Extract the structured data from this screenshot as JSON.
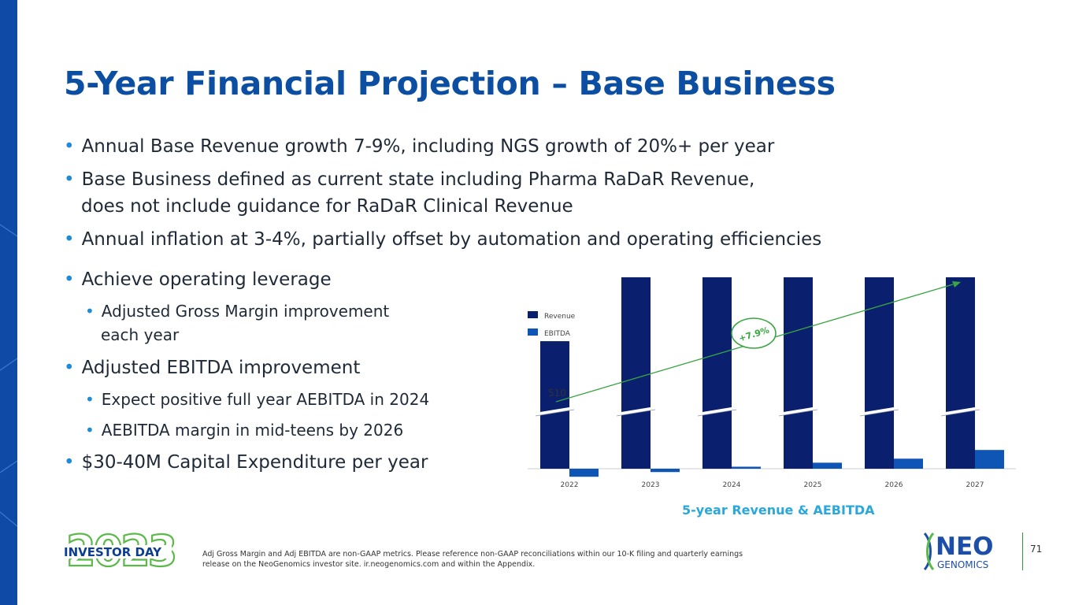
{
  "title": "5-Year Financial Projection – Base Business",
  "bullets": [
    "Annual Base Revenue growth 7-9%, including NGS growth of 20%+ per year",
    "Base Business defined as current state including Pharma RaDaR Revenue,",
    "does not include guidance for RaDaR Clinical Revenue",
    "Annual inflation at 3-4%, partially offset by automation and operating efficiencies",
    "Achieve operating leverage",
    "Adjusted EBITDA improvement",
    "$30-40M Capital Expenditure per year"
  ],
  "sub_bullets": [
    "Adjusted Gross Margin improvement",
    "each year",
    "Expect positive full year AEBITDA in 2024",
    "AEBITDA margin in mid-teens by 2026"
  ],
  "bullet_marker": "•",
  "chart_data": {
    "type": "bar",
    "categories": [
      "2022",
      "2023",
      "2024",
      "2025",
      "2026",
      "2027"
    ],
    "series": [
      {
        "name": "Revenue",
        "values": [
          510,
          550,
          594,
          645,
          700,
          753
        ],
        "color": "#0a1f6e"
      },
      {
        "name": "EBITDA",
        "values": [
          -12,
          -5,
          3,
          9,
          15,
          28
        ],
        "color": "#0f55b6"
      }
    ],
    "data_labels": {
      "first_revenue": "510"
    },
    "growth_annotation": "+7.9%",
    "axis_break": true,
    "legend_position": "top-left",
    "grid": false,
    "arrow_color": "#3aa542"
  },
  "chart_caption": "5-year Revenue & AEBITDA",
  "logo": {
    "year": "2023",
    "text": "INVESTOR DAY"
  },
  "footnote": "Adj Gross Margin and Adj EBITDA are non-GAAP metrics. Please reference non-GAAP reconciliations within our 10-K filing and quarterly earnings release on the NeoGenomics investor site. ir.neogenomics.com and within the Appendix.",
  "brand": {
    "line1": "NEO",
    "line2": "GENOMICS"
  },
  "page_number": "71",
  "colors": {
    "title": "#0b4ea2",
    "caption": "#2aa7dc",
    "accent_green": "#5bb94a",
    "band": "#0f4aa7"
  }
}
